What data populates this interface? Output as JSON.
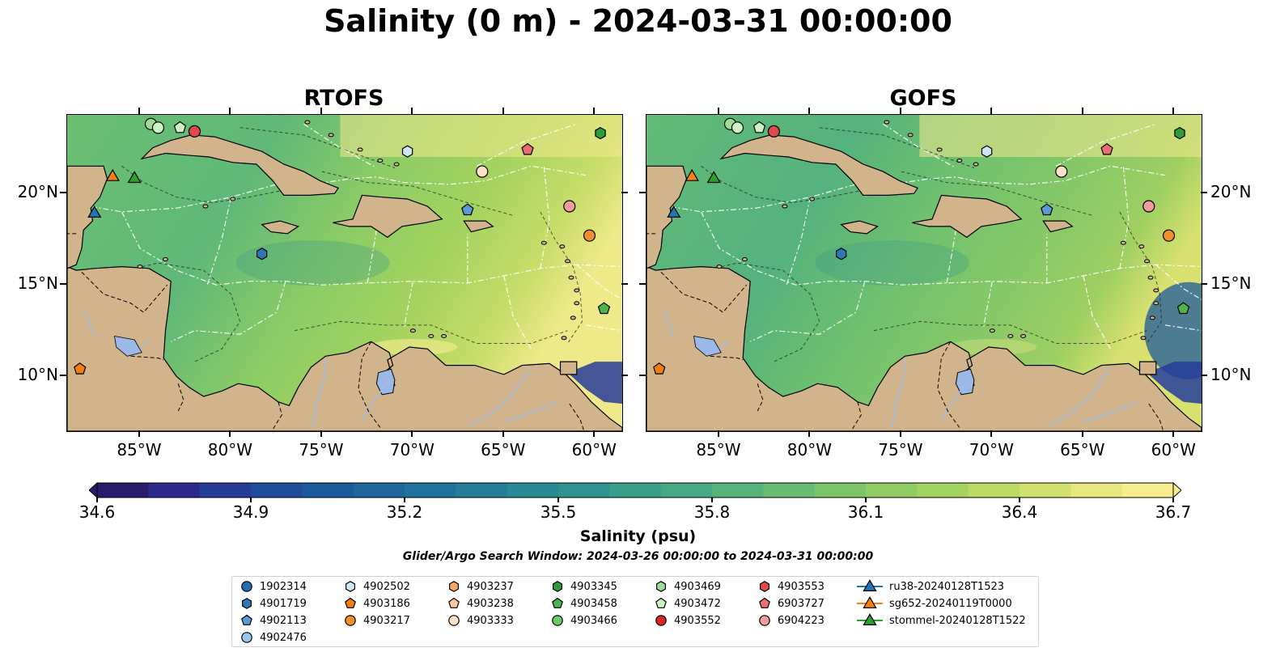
{
  "title": "Salinity (0 m) - 2024-03-31 00:00:00",
  "panels": [
    {
      "title": "RTOFS"
    },
    {
      "title": "GOFS"
    }
  ],
  "lon_ticks": [
    "85°W",
    "80°W",
    "75°W",
    "70°W",
    "65°W",
    "60°W"
  ],
  "lat_ticks": [
    "20°N",
    "15°N",
    "10°N"
  ],
  "colorbar": {
    "label": "Salinity (psu)",
    "min": 34.6,
    "max": 36.7,
    "ticks": [
      "34.6",
      "34.9",
      "35.2",
      "35.5",
      "35.8",
      "36.1",
      "36.4",
      "36.7"
    ],
    "colors": [
      "#2a1a6b",
      "#2b2a8c",
      "#263c99",
      "#1f4b9b",
      "#1b5a9c",
      "#1e669b",
      "#1f729b",
      "#257d98",
      "#2b8895",
      "#319391",
      "#3a9e8a",
      "#47a983",
      "#56b37a",
      "#68bc72",
      "#7bc46a",
      "#8fcc63",
      "#a5d35f",
      "#bcd961",
      "#d2e06c",
      "#e6e77d",
      "#f7ec8e"
    ]
  },
  "search_window": "Glider/Argo Search Window: 2024-03-26 00:00:00 to 2024-03-31 00:00:00",
  "legend": [
    {
      "label": "1902314",
      "marker": "circle",
      "color": "#1f6db3"
    },
    {
      "label": "4901719",
      "marker": "hexagon",
      "color": "#2a78b8"
    },
    {
      "label": "4902113",
      "marker": "pentagon",
      "color": "#5a9bd3"
    },
    {
      "label": "4902476",
      "marker": "circle",
      "color": "#9dc7ea"
    },
    {
      "label": "4902502",
      "marker": "hexagon",
      "color": "#cfe6f7"
    },
    {
      "label": "4903186",
      "marker": "pentagon",
      "color": "#f07f0f"
    },
    {
      "label": "4903217",
      "marker": "circle",
      "color": "#f38e2b"
    },
    {
      "label": "4903237",
      "marker": "hexagon",
      "color": "#f7aa5e"
    },
    {
      "label": "4903238",
      "marker": "pentagon",
      "color": "#fbc79a"
    },
    {
      "label": "4903333",
      "marker": "circle",
      "color": "#fde0c5"
    },
    {
      "label": "4903345",
      "marker": "hexagon",
      "color": "#2f9b3a"
    },
    {
      "label": "4903458",
      "marker": "pentagon",
      "color": "#4eb34e"
    },
    {
      "label": "4903466",
      "marker": "circle",
      "color": "#6fc66b"
    },
    {
      "label": "4903469",
      "marker": "hexagon",
      "color": "#9ddb96"
    },
    {
      "label": "4903472",
      "marker": "pentagon",
      "color": "#cdf0c5"
    },
    {
      "label": "4903552",
      "marker": "circle",
      "color": "#d62728"
    },
    {
      "label": "4903553",
      "marker": "hexagon",
      "color": "#e04949"
    },
    {
      "label": "6903727",
      "marker": "pentagon",
      "color": "#ea6e73"
    },
    {
      "label": "6904223",
      "marker": "circle",
      "color": "#f29b9b"
    },
    {
      "label": "ru38-20240128T1523",
      "marker": "triangle",
      "color": "#1f77b4"
    },
    {
      "label": "sg652-20240119T0000",
      "marker": "triangle",
      "color": "#ff7f0e"
    },
    {
      "label": "stommel-20240128T1522",
      "marker": "triangle",
      "color": "#2ca02c"
    }
  ],
  "markers": [
    {
      "lon": -84.4,
      "lat": 23.8,
      "marker": "circle",
      "color": "#9ddb96"
    },
    {
      "lon": -84.0,
      "lat": 23.6,
      "marker": "circle",
      "color": "#cdf0c5"
    },
    {
      "lon": -82.8,
      "lat": 23.6,
      "marker": "pentagon",
      "color": "#cdf0c5"
    },
    {
      "lon": -82.0,
      "lat": 23.4,
      "marker": "circle",
      "color": "#e04949"
    },
    {
      "lon": -70.3,
      "lat": 22.3,
      "marker": "hexagon",
      "color": "#cfe6f7"
    },
    {
      "lon": -59.7,
      "lat": 23.3,
      "marker": "hexagon",
      "color": "#2f9b3a"
    },
    {
      "lon": -63.7,
      "lat": 22.4,
      "marker": "pentagon",
      "color": "#ea6e73"
    },
    {
      "lon": -66.2,
      "lat": 21.2,
      "marker": "circle",
      "color": "#fde0c5"
    },
    {
      "lon": -67.0,
      "lat": 19.1,
      "marker": "pentagon",
      "color": "#5a9bd3"
    },
    {
      "lon": -61.4,
      "lat": 19.3,
      "marker": "circle",
      "color": "#f29b9b"
    },
    {
      "lon": -60.3,
      "lat": 17.7,
      "marker": "circle",
      "color": "#f38e2b"
    },
    {
      "lon": -59.5,
      "lat": 13.7,
      "marker": "pentagon",
      "color": "#4eb34e"
    },
    {
      "lon": -78.3,
      "lat": 16.7,
      "marker": "hexagon",
      "color": "#2a78b8"
    },
    {
      "lon": -88.3,
      "lat": 10.4,
      "marker": "pentagon",
      "color": "#f07f0f"
    },
    {
      "lon": -87.5,
      "lat": 18.9,
      "marker": "triangle",
      "color": "#1f77b4"
    },
    {
      "lon": -86.5,
      "lat": 20.9,
      "marker": "triangle",
      "color": "#ff7f0e"
    },
    {
      "lon": -85.3,
      "lat": 20.8,
      "marker": "triangle",
      "color": "#2ca02c"
    }
  ]
}
